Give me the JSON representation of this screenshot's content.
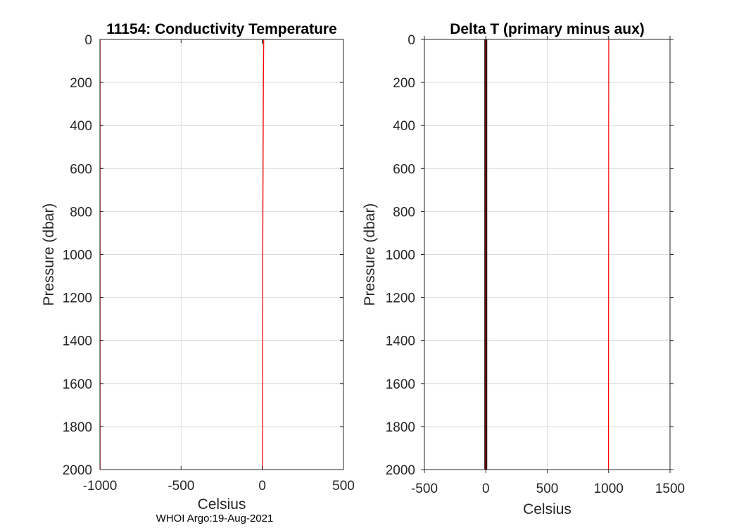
{
  "footer": {
    "text": "WHOI Argo:19-Aug-2021"
  },
  "colors": {
    "profile_red": "#ff0000",
    "zero_black": "#000000",
    "grid": "#dcdcdc"
  },
  "chart_data": [
    {
      "type": "line",
      "title": "11154: Conductivity Temperature",
      "xlabel": "Celsius",
      "ylabel": "Pressure (dbar)",
      "xlim": [
        -1000,
        500
      ],
      "ylim": [
        2000,
        0
      ],
      "y_reversed": true,
      "grid": true,
      "xticks": [
        -1000,
        -500,
        0,
        500
      ],
      "xtick_labels": [
        "-1000",
        "-500",
        "0",
        "500"
      ],
      "yticks": [
        0,
        200,
        400,
        600,
        800,
        1000,
        1200,
        1400,
        1600,
        1800,
        2000
      ],
      "ytick_labels": [
        "0",
        "200",
        "400",
        "600",
        "800",
        "1000",
        "1200",
        "1400",
        "1600",
        "1800",
        "2000"
      ],
      "series": [
        {
          "color": "#ff0000",
          "x": [
            -999,
            -999
          ],
          "y": [
            0,
            2000
          ]
        },
        {
          "color": "#ff0000",
          "x": [
            9,
            7,
            6,
            5,
            4,
            3,
            2.5,
            2.2,
            2
          ],
          "y": [
            0,
            200,
            400,
            600,
            800,
            1000,
            1200,
            1600,
            2000
          ]
        },
        {
          "color": "#000000",
          "x": [
            2,
            2
          ],
          "y": [
            0,
            20
          ]
        }
      ]
    },
    {
      "type": "line",
      "title": "Delta T (primary minus aux)",
      "xlabel": "Celsius",
      "ylabel": "Pressure (dbar)",
      "xlim": [
        -500,
        1500
      ],
      "ylim": [
        2000,
        0
      ],
      "y_reversed": true,
      "grid": true,
      "xticks": [
        -500,
        0,
        500,
        1000,
        1500
      ],
      "xtick_labels": [
        "-500",
        "0",
        "500",
        "1000",
        "1500"
      ],
      "yticks": [
        0,
        200,
        400,
        600,
        800,
        1000,
        1200,
        1400,
        1600,
        1800,
        2000
      ],
      "ytick_labels": [
        "0",
        "200",
        "400",
        "600",
        "800",
        "1000",
        "1200",
        "1400",
        "1600",
        "1800",
        "2000"
      ],
      "series": [
        {
          "color": "#000000",
          "x": [
            0,
            0
          ],
          "y": [
            0,
            2000
          ],
          "width": 4
        },
        {
          "color": "#ff0000",
          "x": [
            1,
            1
          ],
          "y": [
            0,
            2000
          ]
        },
        {
          "color": "#ff0000",
          "x": [
            1001,
            999
          ],
          "y": [
            0,
            2000
          ]
        }
      ]
    }
  ]
}
